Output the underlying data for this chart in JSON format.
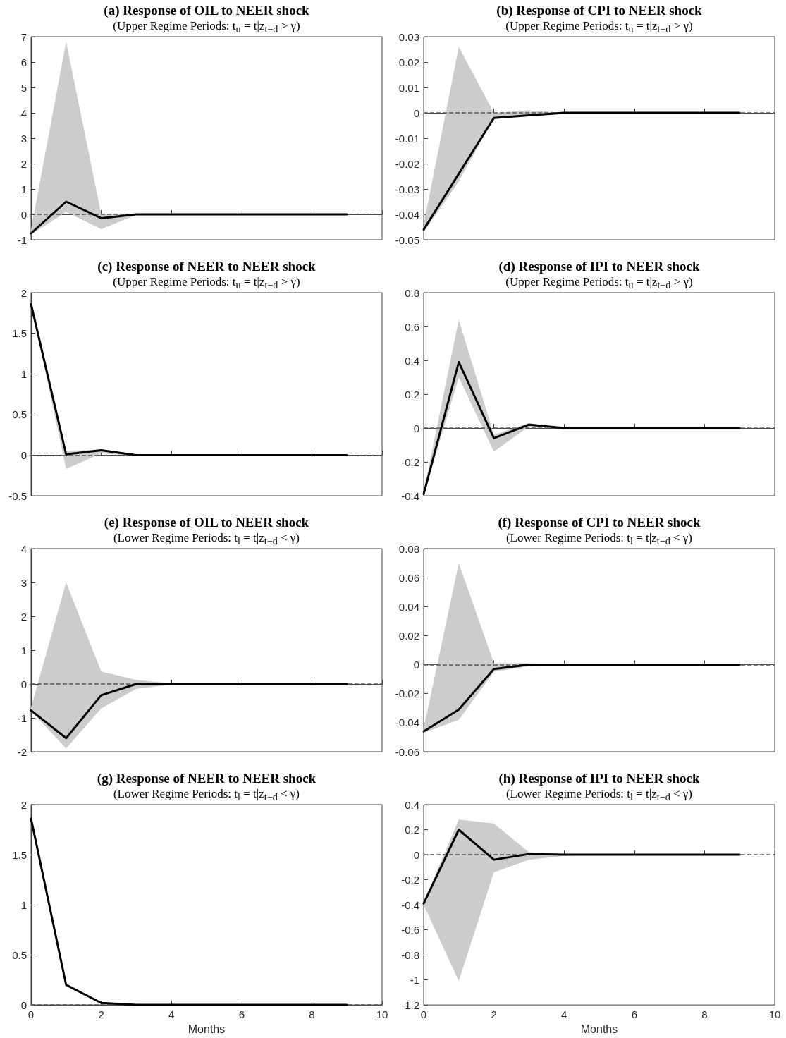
{
  "chart_data": [
    {
      "type": "line",
      "title": "(a) Response of OIL to NEER shock",
      "subtitle": "(Upper Regime Periods: t$_{u}$ = t|z$_{t−d}$ > γ)",
      "x": [
        0,
        1,
        2,
        3,
        4,
        5,
        6,
        7,
        8,
        9
      ],
      "xlim": [
        0,
        10
      ],
      "xticks": [
        0,
        2,
        4,
        6,
        8,
        10
      ],
      "ylim": [
        -1,
        7
      ],
      "yticks": [
        -1,
        0,
        1,
        2,
        3,
        4,
        5,
        6,
        7
      ],
      "tick_labels": "y",
      "ref_lines": [
        {
          "axis": "y",
          "value": 0,
          "color": "#555555",
          "line_style": "dashed"
        }
      ],
      "series": [
        {
          "color": "#000000",
          "values": [
            -0.75,
            0.5,
            -0.15,
            0,
            0,
            0,
            0,
            0,
            0,
            0
          ],
          "upper": [
            -0.6,
            6.8,
            0,
            0.02,
            0,
            0,
            0,
            0,
            0,
            0
          ],
          "lower": [
            -0.8,
            0.1,
            -0.58,
            -0.02,
            0,
            0,
            0,
            0,
            0,
            0
          ]
        }
      ]
    },
    {
      "type": "line",
      "title": "(b) Response of CPI to NEER shock",
      "subtitle": "(Upper Regime Periods: t$_{u}$ = t|z$_{t−d}$ > γ)",
      "x": [
        0,
        1,
        2,
        3,
        4,
        5,
        6,
        7,
        8,
        9
      ],
      "xlim": [
        0,
        10
      ],
      "xticks": [
        0,
        2,
        4,
        6,
        8,
        10
      ],
      "ylim": [
        -0.05,
        0.03
      ],
      "yticks": [
        -0.05,
        -0.04,
        -0.03,
        -0.02,
        -0.01,
        0,
        0.01,
        0.02,
        0.03
      ],
      "tick_labels": "y",
      "ref_lines": [
        {
          "axis": "y",
          "value": 0,
          "color": "#555555",
          "line_style": "dashed"
        }
      ],
      "series": [
        {
          "color": "#000000",
          "values": [
            -0.046,
            -0.024,
            -0.002,
            -0.001,
            0,
            0,
            0,
            0,
            0,
            0
          ],
          "upper": [
            -0.044,
            0.026,
            0,
            0.001,
            0,
            0,
            0,
            0,
            0,
            0
          ],
          "lower": [
            -0.047,
            -0.027,
            -0.002,
            -0.001,
            0,
            0,
            0,
            0,
            0,
            0
          ]
        }
      ]
    },
    {
      "type": "line",
      "title": "(c) Response of NEER to NEER shock",
      "subtitle": "(Upper Regime Periods: t$_{u}$ = t|z$_{t−d}$ > γ)",
      "x": [
        0,
        1,
        2,
        3,
        4,
        5,
        6,
        7,
        8,
        9
      ],
      "xlim": [
        0,
        10
      ],
      "xticks": [
        0,
        2,
        4,
        6,
        8,
        10
      ],
      "ylim": [
        -0.5,
        2
      ],
      "yticks": [
        -0.5,
        0,
        0.5,
        1,
        1.5,
        2
      ],
      "tick_labels": "y",
      "ref_lines": [
        {
          "axis": "y",
          "value": 0,
          "color": "#555555",
          "line_style": "dashed"
        }
      ],
      "series": [
        {
          "color": "#000000",
          "values": [
            1.86,
            0.01,
            0.06,
            0,
            0,
            0,
            0,
            0,
            0,
            0
          ],
          "upper": [
            1.87,
            0.05,
            0.07,
            0.01,
            0,
            0,
            0,
            0,
            0,
            0
          ],
          "lower": [
            1.85,
            -0.17,
            0.02,
            -0.01,
            0,
            0,
            0,
            0,
            0,
            0
          ]
        }
      ]
    },
    {
      "type": "line",
      "title": "(d) Response of IPI to NEER shock",
      "subtitle": "(Upper Regime Periods: t$_{u}$ = t|z$_{t−d}$ > γ)",
      "x": [
        0,
        1,
        2,
        3,
        4,
        5,
        6,
        7,
        8,
        9
      ],
      "xlim": [
        0,
        10
      ],
      "xticks": [
        0,
        2,
        4,
        6,
        8,
        10
      ],
      "ylim": [
        -0.4,
        0.8
      ],
      "yticks": [
        -0.4,
        -0.2,
        0,
        0.2,
        0.4,
        0.6,
        0.8
      ],
      "tick_labels": "y",
      "ref_lines": [
        {
          "axis": "y",
          "value": 0,
          "color": "#555555",
          "line_style": "dashed"
        }
      ],
      "series": [
        {
          "color": "#000000",
          "values": [
            -0.39,
            0.39,
            -0.06,
            0.02,
            0,
            0,
            0,
            0,
            0,
            0
          ],
          "upper": [
            -0.38,
            0.64,
            -0.04,
            0.03,
            0,
            0,
            0,
            0,
            0,
            0
          ],
          "lower": [
            -0.4,
            0.3,
            -0.14,
            0.01,
            0,
            0,
            0,
            0,
            0,
            0
          ]
        }
      ]
    },
    {
      "type": "line",
      "title": "(e) Response of OIL to NEER shock",
      "subtitle": "(Lower Regime Periods: t$_{l}$ = t|z$_{t−d}$ < γ)",
      "x": [
        0,
        1,
        2,
        3,
        4,
        5,
        6,
        7,
        8,
        9
      ],
      "xlim": [
        0,
        10
      ],
      "xticks": [
        0,
        2,
        4,
        6,
        8,
        10
      ],
      "ylim": [
        -2,
        4
      ],
      "yticks": [
        -2,
        -1,
        0,
        1,
        2,
        3,
        4
      ],
      "tick_labels": "y",
      "ref_lines": [
        {
          "axis": "y",
          "value": 0,
          "color": "#555555",
          "line_style": "dashed"
        }
      ],
      "series": [
        {
          "color": "#000000",
          "values": [
            -0.78,
            -1.6,
            -0.33,
            0,
            0,
            0,
            0,
            0,
            0,
            0
          ],
          "upper": [
            -0.7,
            3,
            0.37,
            0.12,
            0.02,
            0,
            0,
            0,
            0,
            0
          ],
          "lower": [
            -0.8,
            -1.9,
            -0.72,
            -0.14,
            -0.02,
            0,
            0,
            0,
            0,
            0
          ]
        }
      ]
    },
    {
      "type": "line",
      "title": "(f) Response of CPI to NEER shock",
      "subtitle": "(Lower Regime Periods: t$_{l}$ = t|z$_{t−d}$ < γ)",
      "x": [
        0,
        1,
        2,
        3,
        4,
        5,
        6,
        7,
        8,
        9
      ],
      "xlim": [
        0,
        10
      ],
      "xticks": [
        0,
        2,
        4,
        6,
        8,
        10
      ],
      "ylim": [
        -0.06,
        0.08
      ],
      "yticks": [
        -0.06,
        -0.04,
        -0.02,
        0,
        0.02,
        0.04,
        0.06,
        0.08
      ],
      "tick_labels": "y",
      "ref_lines": [
        {
          "axis": "y",
          "value": 0,
          "color": "#555555",
          "line_style": "dashed"
        }
      ],
      "series": [
        {
          "color": "#000000",
          "values": [
            -0.046,
            -0.031,
            -0.003,
            0,
            0,
            0,
            0,
            0,
            0,
            0
          ],
          "upper": [
            -0.044,
            0.07,
            0.001,
            0.001,
            0,
            0,
            0,
            0,
            0,
            0
          ],
          "lower": [
            -0.047,
            -0.038,
            -0.005,
            -0.001,
            0,
            0,
            0,
            0,
            0,
            0
          ]
        }
      ]
    },
    {
      "type": "line",
      "title": "(g) Response of NEER to NEER shock",
      "subtitle": "(Lower Regime Periods: t$_{l}$ = t|z$_{t−d}$ < γ)",
      "xlabel": "Months",
      "x": [
        0,
        1,
        2,
        3,
        4,
        5,
        6,
        7,
        8,
        9
      ],
      "xlim": [
        0,
        10
      ],
      "xticks": [
        0,
        2,
        4,
        6,
        8,
        10
      ],
      "ylim": [
        0,
        2
      ],
      "yticks": [
        0,
        0.5,
        1,
        1.5,
        2
      ],
      "ref_lines": [
        {
          "axis": "y",
          "value": 0,
          "color": "#555555",
          "line_style": "dashed"
        }
      ],
      "series": [
        {
          "color": "#000000",
          "values": [
            1.86,
            0.2,
            0.02,
            0,
            0,
            0,
            0,
            0,
            0,
            0
          ]
        }
      ]
    },
    {
      "type": "line",
      "title": "(h) Response of IPI to NEER shock",
      "subtitle": "(Lower Regime Periods: t$_{l}$ = t|z$_{t−d}$ < γ)",
      "xlabel": "Months",
      "x": [
        0,
        1,
        2,
        3,
        4,
        5,
        6,
        7,
        8,
        9
      ],
      "xlim": [
        0,
        10
      ],
      "xticks": [
        0,
        2,
        4,
        6,
        8,
        10
      ],
      "ylim": [
        -1.2,
        0.4
      ],
      "yticks": [
        -1.2,
        -1,
        -0.8,
        -0.6,
        -0.4,
        -0.2,
        0,
        0.2,
        0.4
      ],
      "ref_lines": [
        {
          "axis": "y",
          "value": 0,
          "color": "#555555",
          "line_style": "dashed"
        }
      ],
      "series": [
        {
          "color": "#000000",
          "values": [
            -0.39,
            0.2,
            -0.04,
            0.005,
            0,
            0,
            0,
            0,
            0,
            0
          ],
          "upper": [
            -0.38,
            0.28,
            0.25,
            0.02,
            0,
            0,
            0,
            0,
            0,
            0
          ],
          "lower": [
            -0.4,
            -1.01,
            -0.14,
            -0.04,
            -0.01,
            0,
            0,
            0,
            0,
            0
          ]
        }
      ]
    }
  ]
}
